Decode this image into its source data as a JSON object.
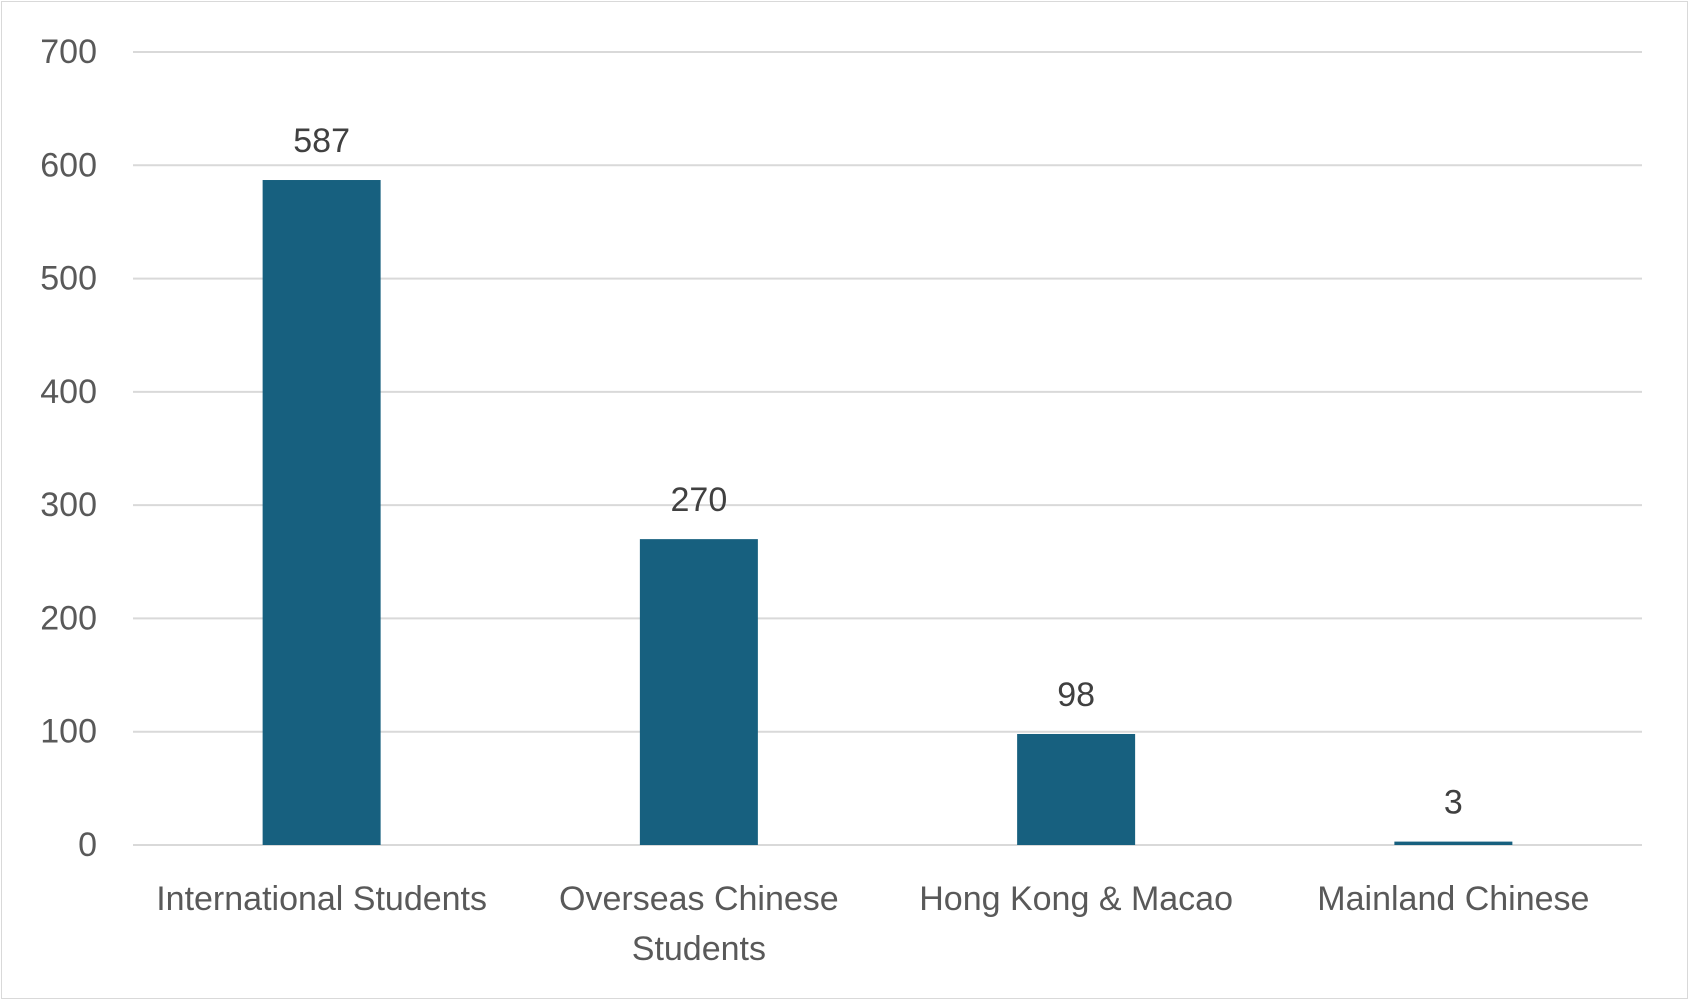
{
  "chart_data": {
    "type": "bar",
    "title": "",
    "xlabel": "",
    "ylabel": "",
    "categories": [
      [
        "International Students"
      ],
      [
        "Overseas Chinese",
        "Students"
      ],
      [
        "Hong Kong & Macao"
      ],
      [
        "Mainland Chinese"
      ]
    ],
    "values": [
      587,
      270,
      98,
      3
    ],
    "ylim": [
      0,
      700
    ],
    "yticks": [
      0,
      100,
      200,
      300,
      400,
      500,
      600,
      700
    ],
    "grid": true,
    "legend": "none",
    "colors": {
      "bar": "#17607f",
      "grid": "#d9d9d9",
      "tick_text": "#595959",
      "label_text": "#404040"
    }
  }
}
